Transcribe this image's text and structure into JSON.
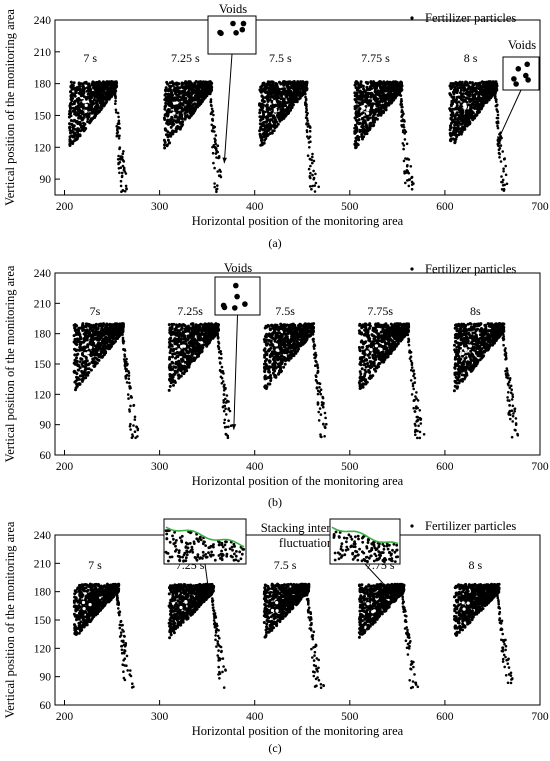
{
  "chart_data": [
    {
      "type": "scatter",
      "panel_label": "(a)",
      "xlabel": "Horizontal position of the monitoring area",
      "ylabel": "Vertical position of the monitoring area",
      "xlim": [
        190,
        700
      ],
      "ylim": [
        75,
        240
      ],
      "xticks": [
        200,
        300,
        400,
        500,
        600,
        700
      ],
      "yticks": [
        90,
        120,
        150,
        180,
        210,
        240
      ],
      "legend": "Fertilizer particles",
      "legend_position": "top-right",
      "grid": false,
      "snapshots": [
        {
          "time": "7 s",
          "x_offset": 0
        },
        {
          "time": "7.25 s",
          "x_offset": 100
        },
        {
          "time": "7.5 s",
          "x_offset": 200
        },
        {
          "time": "7.75 s",
          "x_offset": 300
        },
        {
          "time": "8 s",
          "x_offset": 400
        }
      ],
      "pile_region": {
        "x": [
          205,
          255
        ],
        "y_top": 182,
        "y_bottom": 118
      },
      "falling_stream": {
        "x": [
          250,
          266
        ],
        "y": [
          78,
          180
        ]
      },
      "annotations": [
        {
          "text": "Voids",
          "points_to": [
            368,
            105
          ],
          "snapshot": "7.25 s"
        },
        {
          "text": "Voids",
          "points_to": [
            655,
            125
          ],
          "snapshot": "8 s"
        }
      ]
    },
    {
      "type": "scatter",
      "panel_label": "(b)",
      "xlabel": "Horizontal position of the monitoring area",
      "ylabel": "Vertical position of the monitoring area",
      "xlim": [
        190,
        700
      ],
      "ylim": [
        60,
        240
      ],
      "xticks": [
        200,
        300,
        400,
        500,
        600,
        700
      ],
      "yticks": [
        60,
        90,
        120,
        150,
        180,
        210,
        240
      ],
      "legend": "Fertilizer particles",
      "legend_position": "top-right",
      "grid": false,
      "snapshots": [
        {
          "time": "7s",
          "x_offset": 0
        },
        {
          "time": "7.25s",
          "x_offset": 100
        },
        {
          "time": "7.5s",
          "x_offset": 200
        },
        {
          "time": "7.75s",
          "x_offset": 300
        },
        {
          "time": "8s",
          "x_offset": 400
        }
      ],
      "pile_region": {
        "x": [
          210,
          262
        ],
        "y_top": 190,
        "y_bottom": 122
      },
      "falling_stream": {
        "x": [
          258,
          278
        ],
        "y": [
          76,
          188
        ]
      },
      "annotations": [
        {
          "text": "Voids",
          "points_to": [
            378,
            85
          ],
          "snapshot": "7.25s"
        }
      ]
    },
    {
      "type": "scatter",
      "panel_label": "(c)",
      "xlabel": "Horizontal position of the monitoring area",
      "ylabel": "Vertical position of the monitoring area",
      "xlim": [
        190,
        700
      ],
      "ylim": [
        60,
        240
      ],
      "xticks": [
        200,
        300,
        400,
        500,
        600,
        700
      ],
      "yticks": [
        60,
        90,
        120,
        150,
        180,
        210,
        240
      ],
      "legend": "Fertilizer particles",
      "legend_position": "top-right",
      "grid": false,
      "snapshots": [
        {
          "time": "7 s",
          "x_offset": 0
        },
        {
          "time": "7.25 s",
          "x_offset": 100
        },
        {
          "time": "7.5 s",
          "x_offset": 200
        },
        {
          "time": "7.75 s",
          "x_offset": 300
        },
        {
          "time": "8 s",
          "x_offset": 400
        }
      ],
      "pile_region": {
        "x": [
          210,
          257
        ],
        "y_top": 188,
        "y_bottom": 130
      },
      "falling_stream": {
        "x": [
          252,
          272
        ],
        "y": [
          78,
          185
        ]
      },
      "annotations": [
        {
          "text": "Stacking interface fluctuation",
          "points_to": [
            352,
            178
          ],
          "snapshot": "7.25 s"
        },
        {
          "text": "",
          "points_to": [
            545,
            178
          ],
          "snapshot": "7.75 s"
        }
      ]
    }
  ]
}
